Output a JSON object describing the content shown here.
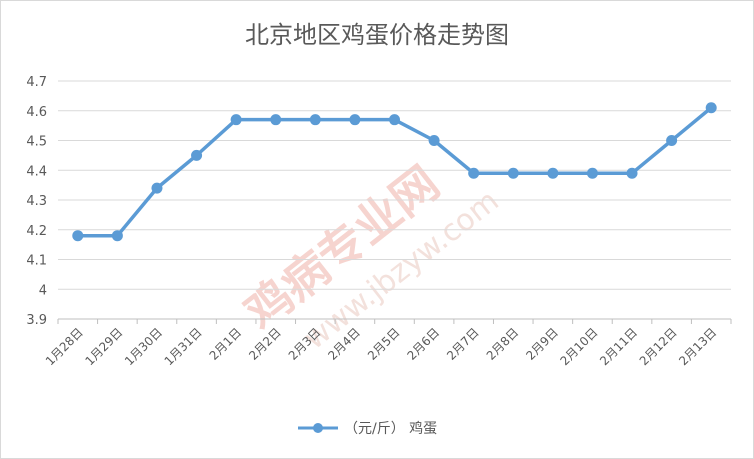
{
  "chart_data": {
    "type": "line",
    "title": "北京地区鸡蛋价格走势图",
    "categories": [
      "1月28日",
      "1月29日",
      "1月30日",
      "1月31日",
      "2月1日",
      "2月2日",
      "2月3日",
      "2月4日",
      "2月5日",
      "2月6日",
      "2月7日",
      "2月8日",
      "2月9日",
      "2月10日",
      "2月11日",
      "2月12日",
      "2月13日"
    ],
    "series": [
      {
        "name": "（元/斤） 鸡蛋",
        "values": [
          4.18,
          4.18,
          4.34,
          4.45,
          4.57,
          4.57,
          4.57,
          4.57,
          4.57,
          4.5,
          4.39,
          4.39,
          4.39,
          4.39,
          4.39,
          4.5,
          4.61
        ]
      }
    ],
    "yticks": [
      "4.7",
      "4.6",
      "4.5",
      "4.4",
      "4.3",
      "4.2",
      "4.1",
      "4",
      "3.9"
    ],
    "ylim": [
      3.9,
      4.7
    ],
    "grid": true,
    "legend": "bottom",
    "line_color": "#5b9bd5",
    "watermark": [
      "鸡病专业网",
      "www.jbzyw.com"
    ]
  }
}
